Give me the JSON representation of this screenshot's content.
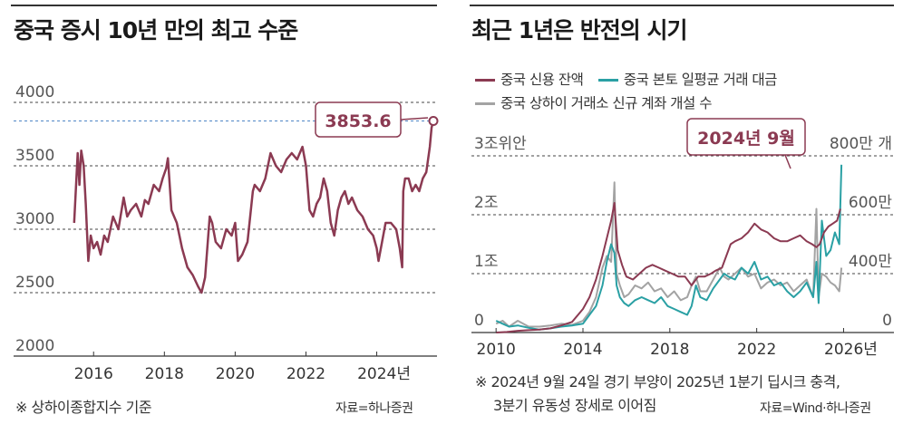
{
  "colors": {
    "maroon": "#8b3a52",
    "teal": "#2aa0a4",
    "gray": "#a3a3a3",
    "grid": "#444444",
    "dashed_blue": "#4f86c6"
  },
  "left_panel": {
    "title": "중국 증시 10년 만의 최고 수준",
    "callout": "3853.6",
    "note": "※ 상하이종합지수 기준",
    "source": "자료=하나증권"
  },
  "right_panel": {
    "title": "최근 1년은 반전의 시기",
    "callout": "2024년 9월",
    "legend": [
      "중국 신용 잔액",
      "중국 본토 일평균 거래 대금",
      "중국 상하이 거래소 신규 계좌 개설 수"
    ],
    "note_line1": "※ 2024년 9월 24일 경기 부양이 2025년 1분기 딥시크 충격,",
    "note_line2": "3분기 유동성 장세로 이어짐",
    "source": "자료=Wind·하나증권"
  },
  "chart_data": [
    {
      "type": "line",
      "title": "중국 증시 10년 만의 최고 수준",
      "ylim": [
        2000,
        4000
      ],
      "y_ticks": [
        "4000",
        "3500",
        "3000",
        "2500",
        "2000"
      ],
      "x_ticks": [
        "2016",
        "2018",
        "2020",
        "2022",
        "2024년"
      ],
      "xlim": [
        2015.2,
        2025.6
      ],
      "reference_value": 3853.6,
      "series": [
        {
          "name": "상하이종합지수",
          "x": [
            2015.45,
            2015.55,
            2015.6,
            2015.65,
            2015.72,
            2015.78,
            2015.85,
            2015.92,
            2016.0,
            2016.1,
            2016.2,
            2016.3,
            2016.4,
            2016.55,
            2016.7,
            2016.85,
            2016.95,
            2017.05,
            2017.2,
            2017.35,
            2017.45,
            2017.55,
            2017.7,
            2017.85,
            2017.95,
            2018.05,
            2018.1,
            2018.2,
            2018.35,
            2018.5,
            2018.65,
            2018.8,
            2018.95,
            2019.05,
            2019.15,
            2019.28,
            2019.35,
            2019.45,
            2019.6,
            2019.75,
            2019.9,
            2020.0,
            2020.08,
            2020.2,
            2020.35,
            2020.5,
            2020.55,
            2020.7,
            2020.85,
            2021.0,
            2021.15,
            2021.3,
            2021.45,
            2021.6,
            2021.75,
            2021.9,
            2022.0,
            2022.1,
            2022.2,
            2022.3,
            2022.4,
            2022.5,
            2022.6,
            2022.7,
            2022.8,
            2022.9,
            2023.0,
            2023.1,
            2023.2,
            2023.3,
            2023.45,
            2023.6,
            2023.75,
            2023.9,
            2024.0,
            2024.05,
            2024.15,
            2024.25,
            2024.4,
            2024.55,
            2024.65,
            2024.72,
            2024.75,
            2024.8,
            2024.9,
            2025.0,
            2025.1,
            2025.2,
            2025.3,
            2025.4,
            2025.5,
            2025.55,
            2025.6
          ],
          "values": [
            3050,
            3600,
            3350,
            3620,
            3500,
            3200,
            2750,
            2950,
            2850,
            2900,
            2800,
            2950,
            2900,
            3100,
            3000,
            3250,
            3100,
            3150,
            3200,
            3100,
            3230,
            3200,
            3350,
            3300,
            3400,
            3480,
            3560,
            3150,
            3050,
            2850,
            2700,
            2640,
            2550,
            2500,
            2620,
            3100,
            3050,
            2900,
            2850,
            3000,
            2950,
            3050,
            2750,
            2800,
            2900,
            3300,
            3350,
            3300,
            3400,
            3600,
            3500,
            3450,
            3550,
            3600,
            3550,
            3650,
            3500,
            3150,
            3100,
            3200,
            3250,
            3400,
            3300,
            3050,
            2950,
            3150,
            3250,
            3300,
            3200,
            3250,
            3150,
            3100,
            3000,
            2950,
            2850,
            2750,
            2900,
            3050,
            3050,
            3000,
            2850,
            2700,
            3300,
            3400,
            3400,
            3300,
            3350,
            3300,
            3400,
            3450,
            3650,
            3800,
            3853.6
          ]
        }
      ]
    },
    {
      "type": "line",
      "title": "최근 1년은 반전의 시기",
      "x_ticks": [
        "2010",
        "2014",
        "2018",
        "2022",
        "2026년"
      ],
      "xlim": [
        2009.2,
        2027.4
      ],
      "left_axis": {
        "label_ticks": [
          "3조위안",
          "2조",
          "1조",
          "0"
        ],
        "ylim": [
          0,
          3
        ]
      },
      "right_axis": {
        "label_ticks": [
          "800만 개",
          "600만",
          "400만",
          "0"
        ],
        "ylim": [
          0,
          800
        ]
      },
      "series": [
        {
          "name": "중국 신용 잔액",
          "axis": "left",
          "x": [
            2010.0,
            2010.5,
            2011.0,
            2011.5,
            2012.0,
            2012.5,
            2013.0,
            2013.5,
            2014.0,
            2014.3,
            2014.6,
            2014.9,
            2015.1,
            2015.3,
            2015.45,
            2015.6,
            2015.8,
            2016.0,
            2016.3,
            2016.6,
            2016.9,
            2017.2,
            2017.5,
            2017.8,
            2018.1,
            2018.4,
            2018.7,
            2019.0,
            2019.3,
            2019.6,
            2019.9,
            2020.1,
            2020.4,
            2020.6,
            2020.8,
            2021.0,
            2021.3,
            2021.6,
            2021.9,
            2022.2,
            2022.5,
            2022.8,
            2023.1,
            2023.4,
            2023.7,
            2024.0,
            2024.3,
            2024.55,
            2024.75,
            2024.9,
            2025.1,
            2025.3,
            2025.5,
            2025.7,
            2025.85
          ],
          "values": [
            0.0,
            0.01,
            0.03,
            0.04,
            0.05,
            0.07,
            0.12,
            0.18,
            0.4,
            0.6,
            0.9,
            1.3,
            1.6,
            1.9,
            2.2,
            1.4,
            1.15,
            0.95,
            0.9,
            1.0,
            1.1,
            1.15,
            1.1,
            1.05,
            1.0,
            0.95,
            0.95,
            0.8,
            0.95,
            0.95,
            1.0,
            1.05,
            1.1,
            1.3,
            1.5,
            1.55,
            1.6,
            1.7,
            1.85,
            1.75,
            1.7,
            1.6,
            1.55,
            1.55,
            1.6,
            1.65,
            1.55,
            1.5,
            1.45,
            1.5,
            1.7,
            1.8,
            1.85,
            1.9,
            2.1
          ]
        },
        {
          "name": "중국 본토 일평균 거래 대금",
          "axis": "left",
          "x": [
            2010.0,
            2010.3,
            2010.6,
            2011.0,
            2011.5,
            2012.0,
            2012.5,
            2013.0,
            2013.5,
            2014.0,
            2014.3,
            2014.6,
            2014.9,
            2015.1,
            2015.3,
            2015.45,
            2015.55,
            2015.7,
            2015.9,
            2016.1,
            2016.4,
            2016.7,
            2017.0,
            2017.3,
            2017.6,
            2017.9,
            2018.2,
            2018.5,
            2018.8,
            2019.0,
            2019.2,
            2019.4,
            2019.7,
            2020.0,
            2020.3,
            2020.5,
            2020.7,
            2021.0,
            2021.3,
            2021.6,
            2021.9,
            2022.2,
            2022.5,
            2022.8,
            2023.1,
            2023.4,
            2023.7,
            2024.0,
            2024.3,
            2024.6,
            2024.75,
            2024.85,
            2025.0,
            2025.2,
            2025.4,
            2025.6,
            2025.8,
            2025.9
          ],
          "values": [
            0.2,
            0.15,
            0.1,
            0.12,
            0.08,
            0.05,
            0.07,
            0.1,
            0.12,
            0.15,
            0.3,
            0.45,
            0.8,
            1.2,
            1.5,
            1.35,
            0.8,
            0.6,
            0.5,
            0.45,
            0.55,
            0.6,
            0.55,
            0.5,
            0.6,
            0.45,
            0.4,
            0.35,
            0.3,
            0.45,
            0.8,
            0.6,
            0.55,
            0.75,
            0.9,
            1.0,
            0.95,
            0.9,
            1.1,
            1.0,
            1.2,
            0.9,
            0.95,
            0.8,
            0.85,
            0.7,
            0.6,
            0.7,
            0.85,
            0.6,
            1.2,
            0.5,
            1.9,
            1.3,
            1.4,
            1.7,
            1.5,
            2.85
          ]
        },
        {
          "name": "중국 상하이 거래소 신규 계좌 개설 수",
          "axis": "left",
          "x": [
            2010.0,
            2010.3,
            2010.6,
            2011.0,
            2011.5,
            2012.0,
            2012.5,
            2013.0,
            2013.5,
            2014.0,
            2014.3,
            2014.6,
            2014.9,
            2015.1,
            2015.3,
            2015.45,
            2015.55,
            2015.7,
            2015.9,
            2016.1,
            2016.4,
            2016.7,
            2017.0,
            2017.3,
            2017.6,
            2017.9,
            2018.2,
            2018.5,
            2018.8,
            2019.0,
            2019.2,
            2019.4,
            2019.7,
            2020.0,
            2020.3,
            2020.5,
            2020.7,
            2021.0,
            2021.3,
            2021.6,
            2021.9,
            2022.2,
            2022.5,
            2022.8,
            2023.1,
            2023.4,
            2023.7,
            2024.0,
            2024.3,
            2024.6,
            2024.75,
            2024.85,
            2025.0,
            2025.2,
            2025.4,
            2025.6,
            2025.8,
            2025.9
          ],
          "values": [
            0.15,
            0.2,
            0.1,
            0.2,
            0.1,
            0.1,
            0.12,
            0.15,
            0.13,
            0.2,
            0.35,
            0.6,
            1.1,
            1.3,
            1.2,
            2.55,
            1.0,
            0.8,
            0.6,
            0.65,
            0.8,
            0.75,
            0.85,
            0.7,
            0.75,
            0.6,
            0.7,
            0.55,
            0.6,
            0.8,
            0.95,
            0.7,
            0.7,
            0.9,
            1.1,
            0.95,
            0.9,
            1.0,
            1.1,
            0.95,
            1.0,
            0.75,
            0.85,
            0.9,
            0.8,
            0.85,
            0.7,
            0.8,
            0.9,
            0.6,
            2.1,
            0.6,
            1.0,
            0.95,
            0.85,
            0.8,
            0.7,
            1.1
          ]
        }
      ]
    }
  ]
}
